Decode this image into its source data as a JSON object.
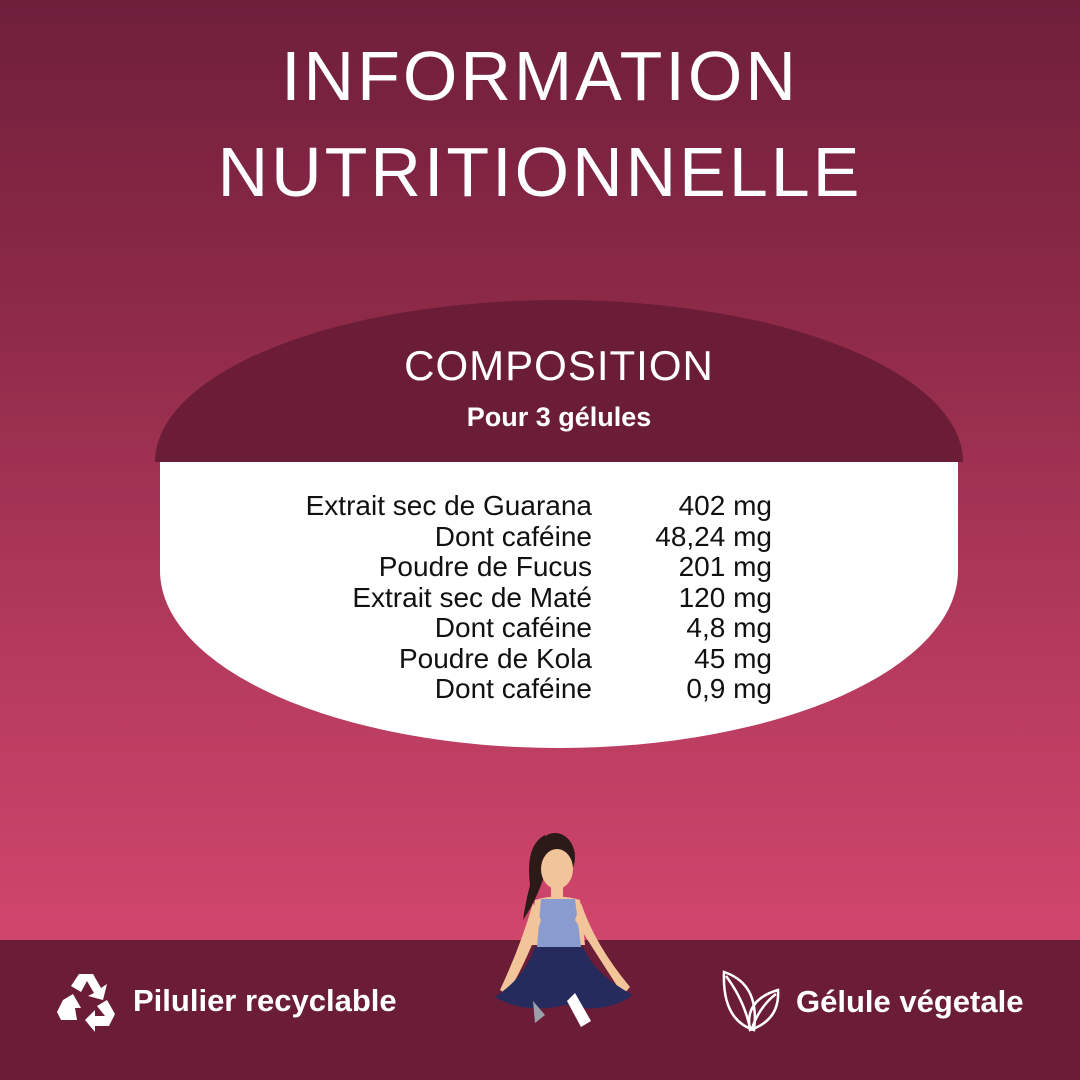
{
  "title_line1": "INFORMATION",
  "title_line2": "NUTRITIONNELLE",
  "composition": {
    "heading": "COMPOSITION",
    "subheading": "Pour 3 gélules",
    "rows": [
      {
        "label": "Extrait sec de Guarana",
        "value": "402 mg"
      },
      {
        "label": "Dont caféine",
        "value": "48,24 mg"
      },
      {
        "label": "Poudre de Fucus",
        "value": "201 mg"
      },
      {
        "label": "Extrait sec de Maté",
        "value": "120 mg"
      },
      {
        "label": "Dont caféine",
        "value": "4,8 mg"
      },
      {
        "label": "Poudre de Kola",
        "value": "45 mg"
      },
      {
        "label": "Dont caféine",
        "value": "0,9 mg"
      }
    ]
  },
  "features": [
    {
      "label": "Pilulier recyclable",
      "icon": "recycle-icon"
    },
    {
      "label": "Gélule végetale",
      "icon": "leaf-icon"
    }
  ],
  "colors": {
    "dark": "#6b1d37",
    "pink": "#d0456c",
    "top": "#6f1f3b"
  }
}
